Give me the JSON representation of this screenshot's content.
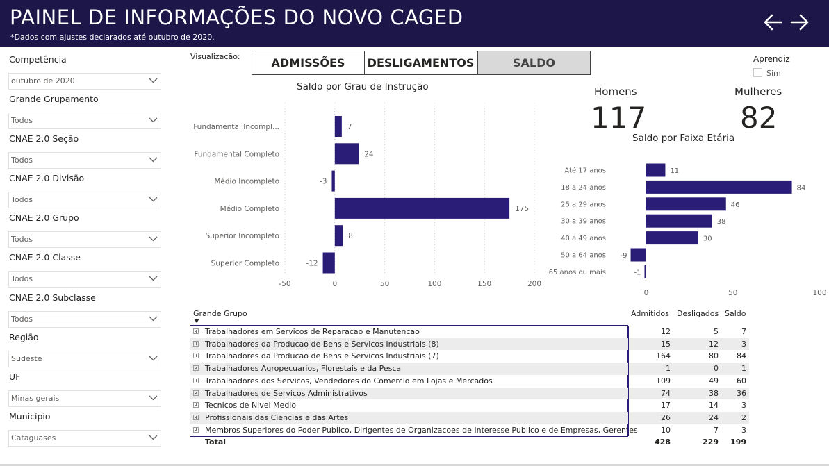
{
  "header": {
    "title": "PAINEL DE INFORMAÇÕES DO NOVO CAGED",
    "subtitle": "*Dados com ajustes declarados até outubro de 2020.",
    "back_icon": "arrow-left-icon",
    "forward_icon": "arrow-right-icon"
  },
  "filters": [
    {
      "label": "Competência",
      "value": "outubro de 2020"
    },
    {
      "label": "Grande Grupamento",
      "value": "Todos"
    },
    {
      "label": "CNAE 2.0 Seção",
      "value": "Todos"
    },
    {
      "label": "CNAE 2.0 Divisão",
      "value": "Todos"
    },
    {
      "label": "CNAE 2.0 Grupo",
      "value": "Todos"
    },
    {
      "label": "CNAE 2.0 Classe",
      "value": "Todos"
    },
    {
      "label": "CNAE 2.0 Subclasse",
      "value": "Todos"
    },
    {
      "label": "Região",
      "value": "Sudeste"
    },
    {
      "label": "UF",
      "value": "Minas gerais"
    },
    {
      "label": "Município",
      "value": "Cataguases"
    }
  ],
  "visualizacao": {
    "label": "Visualização:",
    "tabs": [
      "ADMISSÕES",
      "DESLIGAMENTOS",
      "SALDO"
    ],
    "active": "SALDO"
  },
  "aprendiz": {
    "title": "Aprendiz",
    "option": "Sim",
    "checked": false
  },
  "kpis": {
    "homens_label": "Homens",
    "homens_value": "117",
    "mulheres_label": "Mulheres",
    "mulheres_value": "82"
  },
  "colors": {
    "header_bg": "#1c1649",
    "bar": "#2a1d77",
    "active_tab": "#d9d9d9"
  },
  "chart_data": [
    {
      "type": "bar",
      "orientation": "horizontal",
      "title": "Saldo por Grau de Instrução",
      "categories": [
        "Fundamental Incompl...",
        "Fundamental Completo",
        "Médio Incompleto",
        "Médio Completo",
        "Superior Incompleto",
        "Superior Completo"
      ],
      "values": [
        7,
        24,
        -3,
        175,
        8,
        -12
      ],
      "xticks": [
        "-50",
        "0",
        "50",
        "100",
        "150",
        "200"
      ],
      "xlim": [
        -50,
        200
      ],
      "grid": true
    },
    {
      "type": "bar",
      "orientation": "horizontal",
      "title": "Saldo por Faixa Etária",
      "categories": [
        "Até 17 anos",
        "18 a 24 anos",
        "25 a 29 anos",
        "30 a 39 anos",
        "40 a 49 anos",
        "50 a 64 anos",
        "65 anos ou mais"
      ],
      "values": [
        11,
        84,
        46,
        38,
        30,
        -9,
        -1
      ],
      "xticks": [
        "0",
        "50",
        "100"
      ],
      "xlim": [
        -10,
        100
      ],
      "grid": false
    }
  ],
  "table": {
    "headers": {
      "group": "Grande Grupo",
      "admitidos": "Admitidos",
      "desligados": "Desligados",
      "saldo": "Saldo"
    },
    "rows": [
      {
        "group": "Trabalhadores em Servicos de Reparacao e Manutencao",
        "admitidos": "12",
        "desligados": "5",
        "saldo": "7"
      },
      {
        "group": "Trabalhadores da Producao de Bens e Servicos Industriais (8)",
        "admitidos": "15",
        "desligados": "12",
        "saldo": "3"
      },
      {
        "group": "Trabalhadores da Producao de Bens e Servicos Industriais (7)",
        "admitidos": "164",
        "desligados": "80",
        "saldo": "84"
      },
      {
        "group": "Trabalhadores Agropecuarios, Florestais e da Pesca",
        "admitidos": "1",
        "desligados": "0",
        "saldo": "1"
      },
      {
        "group": "Trabalhadores dos Servicos, Vendedores do Comercio em Lojas e Mercados",
        "admitidos": "109",
        "desligados": "49",
        "saldo": "60"
      },
      {
        "group": "Trabalhadores de Servicos Administrativos",
        "admitidos": "74",
        "desligados": "38",
        "saldo": "36"
      },
      {
        "group": "Tecnicos de Nivel Medio",
        "admitidos": "17",
        "desligados": "14",
        "saldo": "3"
      },
      {
        "group": "Profissionais das Ciencias e das Artes",
        "admitidos": "26",
        "desligados": "24",
        "saldo": "2"
      },
      {
        "group": "Membros Superiores do Poder Publico, Dirigentes de Organizacoes de Interesse Publico e de Empresas, Gerentes",
        "admitidos": "10",
        "desligados": "7",
        "saldo": "3"
      }
    ],
    "total": {
      "group": "Total",
      "admitidos": "428",
      "desligados": "229",
      "saldo": "199"
    }
  }
}
